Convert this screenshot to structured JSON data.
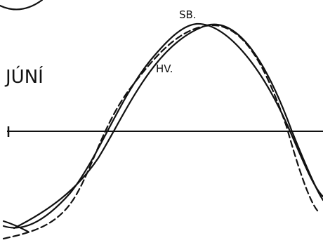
{
  "month_label": "JÚNÍ",
  "curve_labels": [
    "SB.",
    "HV."
  ]
}
